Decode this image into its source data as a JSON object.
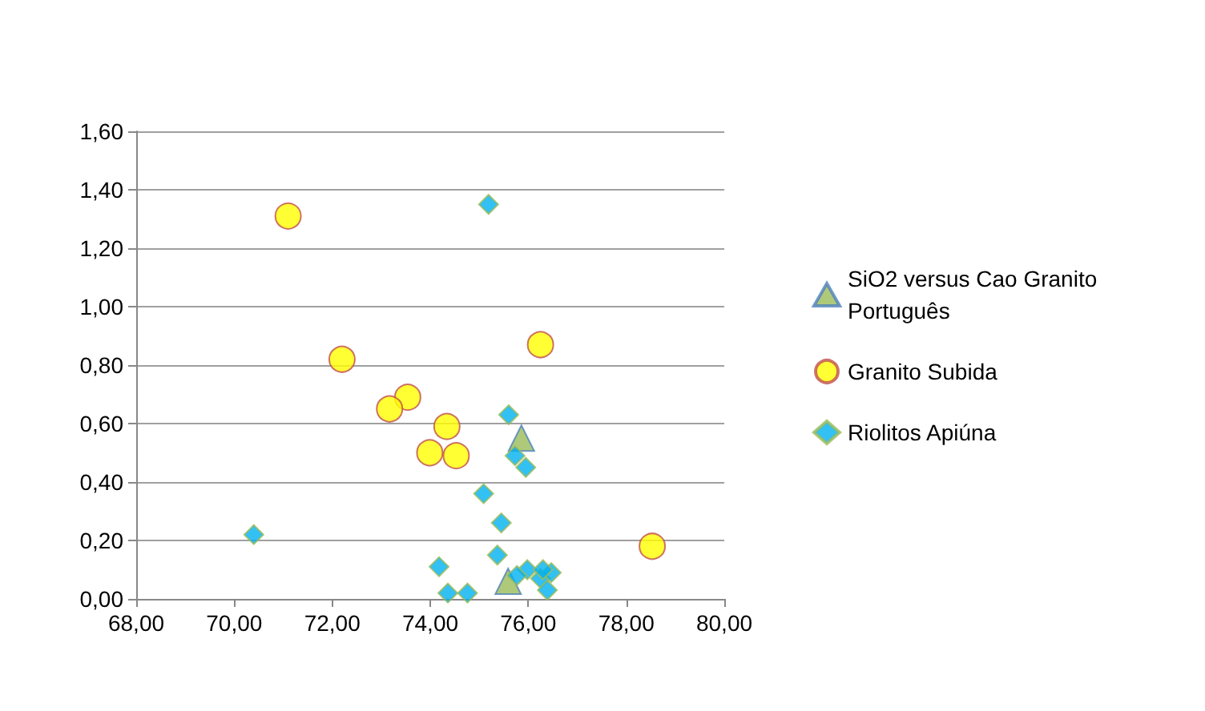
{
  "chart_data": {
    "type": "scatter",
    "grid": "y",
    "legend": "right",
    "xlim": [
      68,
      80
    ],
    "xticks": [
      {
        "value": 68,
        "label": "68,00"
      },
      {
        "value": 70,
        "label": "70,00"
      },
      {
        "value": 72,
        "label": "72,00"
      },
      {
        "value": 74,
        "label": "74,00"
      },
      {
        "value": 76,
        "label": "76,00"
      },
      {
        "value": 78,
        "label": "78,00"
      },
      {
        "value": 80,
        "label": "80,00"
      }
    ],
    "ylim": [
      0,
      1.6
    ],
    "yticks": [
      {
        "value": 0,
        "label": "0,00"
      },
      {
        "value": 0.2,
        "label": "0,20"
      },
      {
        "value": 0.4,
        "label": "0,40"
      },
      {
        "value": 0.6,
        "label": "0,60"
      },
      {
        "value": 0.8,
        "label": "0,80"
      },
      {
        "value": 1,
        "label": "1,00"
      },
      {
        "value": 1.2,
        "label": "1,20"
      },
      {
        "value": 1.4,
        "label": "1,40"
      },
      {
        "value": 1.6,
        "label": "1,60"
      }
    ],
    "series": [
      {
        "name": "SiO2 versus Cao Granito Português",
        "color": "#9bbb59",
        "marker": "triangle",
        "x": [
          75.86,
          75.59
        ],
        "values": [
          0.55,
          0.06
        ]
      },
      {
        "name": "Granito Subida",
        "color": "#ffff00",
        "marker": "circle",
        "x": [
          71.1,
          72.2,
          76.25,
          73.54,
          73.17,
          74.34,
          73.99,
          74.53,
          78.53
        ],
        "values": [
          1.31,
          0.82,
          0.87,
          0.69,
          0.65,
          0.59,
          0.5,
          0.49,
          0.18
        ]
      },
      {
        "name": "Riolitos Apiúna",
        "color": "#00b0f0",
        "marker": "diamond",
        "x": [
          75.19,
          75.6,
          75.73,
          75.95,
          75.09,
          75.45,
          70.4,
          75.37,
          74.18,
          74.36,
          74.76,
          75.98,
          75.77,
          76.25,
          76.47,
          76.39,
          76.3
        ],
        "values": [
          1.35,
          0.63,
          0.49,
          0.45,
          0.36,
          0.26,
          0.22,
          0.15,
          0.11,
          0.02,
          0.02,
          0.1,
          0.08,
          0.07,
          0.09,
          0.03,
          0.1
        ]
      }
    ]
  }
}
